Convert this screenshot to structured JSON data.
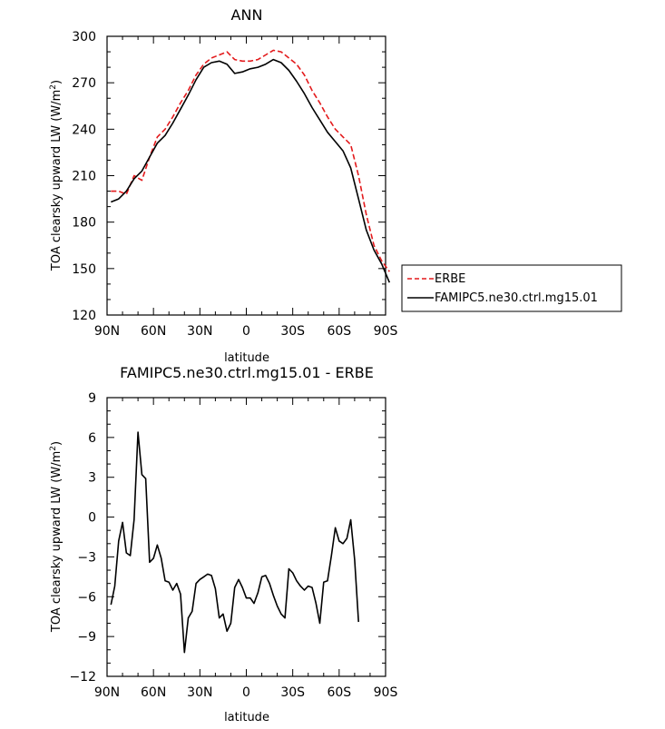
{
  "chart_data": [
    {
      "type": "line",
      "title": "ANN",
      "xlabel": "latitude",
      "ylabel": "TOA clearsky upward LW (W/m2)",
      "ylabel_main": "TOA clearsky upward LW (W/m",
      "ylabel_sup": "2",
      "ylabel_end": ")",
      "xlim": [
        90,
        -90
      ],
      "ylim": [
        120,
        300
      ],
      "xticks": [
        90,
        60,
        30,
        0,
        -30,
        -60,
        -90
      ],
      "xtick_labels": [
        "90N",
        "60N",
        "30N",
        "0",
        "30S",
        "60S",
        "90S"
      ],
      "yticks": [
        120,
        150,
        180,
        210,
        240,
        270,
        300
      ],
      "ytick_labels": [
        "120",
        "150",
        "180",
        "210",
        "240",
        "270",
        "300"
      ],
      "grid": false,
      "legend": "right-outside",
      "series": [
        {
          "name": "ERBE",
          "color": "#e31a1c",
          "dash": "dashed",
          "points": [
            [
              87.5,
              200
            ],
            [
              82.5,
              200
            ],
            [
              77.5,
              198
            ],
            [
              72.5,
              210
            ],
            [
              67.5,
              207
            ],
            [
              62.5,
              222
            ],
            [
              57.5,
              235
            ],
            [
              52.5,
              240
            ],
            [
              47.5,
              248
            ],
            [
              42.5,
              257
            ],
            [
              37.5,
              265
            ],
            [
              32.5,
              275
            ],
            [
              27.5,
              282
            ],
            [
              22.5,
              286
            ],
            [
              17.5,
              288
            ],
            [
              12.5,
              290
            ],
            [
              7.5,
              285
            ],
            [
              2.5,
              284
            ],
            [
              -2.5,
              284
            ],
            [
              -7.5,
              285
            ],
            [
              -12.5,
              288
            ],
            [
              -17.5,
              291
            ],
            [
              -22.5,
              290
            ],
            [
              -27.5,
              286
            ],
            [
              -32.5,
              282
            ],
            [
              -37.5,
              275
            ],
            [
              -42.5,
              265
            ],
            [
              -47.5,
              257
            ],
            [
              -52.5,
              248
            ],
            [
              -57.5,
              240
            ],
            [
              -62.5,
              235
            ],
            [
              -67.5,
              230
            ],
            [
              -72.5,
              210
            ],
            [
              -77.5,
              185
            ],
            [
              -82.5,
              165
            ],
            [
              -87.5,
              155
            ],
            [
              -92.5,
              148
            ]
          ]
        },
        {
          "name": "FAMIPC5.ne30.ctrl.mg15.01",
          "color": "#000000",
          "dash": "solid",
          "points": [
            [
              87.5,
              193
            ],
            [
              82.5,
              195
            ],
            [
              77.5,
              200
            ],
            [
              72.5,
              208
            ],
            [
              67.5,
              213
            ],
            [
              62.5,
              222
            ],
            [
              57.5,
              231
            ],
            [
              52.5,
              236
            ],
            [
              47.5,
              244
            ],
            [
              42.5,
              253
            ],
            [
              37.5,
              262
            ],
            [
              32.5,
              272
            ],
            [
              27.5,
              280
            ],
            [
              22.5,
              283
            ],
            [
              17.5,
              284
            ],
            [
              12.5,
              282
            ],
            [
              7.5,
              276
            ],
            [
              2.5,
              277
            ],
            [
              -2.5,
              279
            ],
            [
              -7.5,
              280
            ],
            [
              -12.5,
              282
            ],
            [
              -17.5,
              285
            ],
            [
              -22.5,
              283
            ],
            [
              -27.5,
              278
            ],
            [
              -32.5,
              271
            ],
            [
              -37.5,
              263
            ],
            [
              -42.5,
              254
            ],
            [
              -47.5,
              246
            ],
            [
              -52.5,
              238
            ],
            [
              -57.5,
              232
            ],
            [
              -62.5,
              226
            ],
            [
              -67.5,
              215
            ],
            [
              -72.5,
              195
            ],
            [
              -77.5,
              175
            ],
            [
              -82.5,
              162
            ],
            [
              -87.5,
              153
            ],
            [
              -92.5,
              141
            ]
          ]
        }
      ]
    },
    {
      "type": "line",
      "title": "FAMIPC5.ne30.ctrl.mg15.01 - ERBE",
      "xlabel": "latitude",
      "ylabel": "TOA clearsky upward LW (W/m2)",
      "ylabel_main": "TOA clearsky upward LW (W/m",
      "ylabel_sup": "2",
      "ylabel_end": ")",
      "xlim": [
        90,
        -90
      ],
      "ylim": [
        -12,
        9
      ],
      "xticks": [
        90,
        60,
        30,
        0,
        -30,
        -60,
        -90
      ],
      "xtick_labels": [
        "90N",
        "60N",
        "30N",
        "0",
        "30S",
        "60S",
        "90S"
      ],
      "yticks": [
        -12,
        -9,
        -6,
        -3,
        0,
        3,
        6,
        9
      ],
      "ytick_labels": [
        "−12",
        "−9",
        "−6",
        "−3",
        "0",
        "3",
        "6",
        "9"
      ],
      "grid": false,
      "series": [
        {
          "name": "FAMIPC5.ne30.ctrl.mg15.01 - ERBE",
          "color": "#000000",
          "dash": "solid",
          "points": [
            [
              87.5,
              -6.6
            ],
            [
              85,
              -5.2
            ],
            [
              82.5,
              -1.8
            ],
            [
              80,
              -0.4
            ],
            [
              77.5,
              -2.7
            ],
            [
              75,
              -2.9
            ],
            [
              72.5,
              -0.2
            ],
            [
              70,
              6.4
            ],
            [
              67.5,
              3.2
            ],
            [
              65,
              2.9
            ],
            [
              62.5,
              -3.4
            ],
            [
              60,
              -3.1
            ],
            [
              57.5,
              -2.1
            ],
            [
              55,
              -3.1
            ],
            [
              52.5,
              -4.8
            ],
            [
              50,
              -4.9
            ],
            [
              47.5,
              -5.5
            ],
            [
              45,
              -5.0
            ],
            [
              42.5,
              -5.8
            ],
            [
              40,
              -10.2
            ],
            [
              37.5,
              -7.6
            ],
            [
              35,
              -7.1
            ],
            [
              32.5,
              -5.0
            ],
            [
              30,
              -4.7
            ],
            [
              27.5,
              -4.5
            ],
            [
              25,
              -4.3
            ],
            [
              22.5,
              -4.4
            ],
            [
              20,
              -5.4
            ],
            [
              17.5,
              -7.6
            ],
            [
              15,
              -7.3
            ],
            [
              12.5,
              -8.6
            ],
            [
              10,
              -8.0
            ],
            [
              7.5,
              -5.3
            ],
            [
              5,
              -4.7
            ],
            [
              2.5,
              -5.3
            ],
            [
              0,
              -6.1
            ],
            [
              -2.5,
              -6.1
            ],
            [
              -5,
              -6.5
            ],
            [
              -7.5,
              -5.7
            ],
            [
              -10,
              -4.5
            ],
            [
              -12.5,
              -4.4
            ],
            [
              -15,
              -5.0
            ],
            [
              -17.5,
              -5.9
            ],
            [
              -20,
              -6.7
            ],
            [
              -22.5,
              -7.3
            ],
            [
              -25,
              -7.6
            ],
            [
              -27.5,
              -3.9
            ],
            [
              -30,
              -4.2
            ],
            [
              -32.5,
              -4.8
            ],
            [
              -35,
              -5.2
            ],
            [
              -37.5,
              -5.5
            ],
            [
              -40,
              -5.2
            ],
            [
              -42.5,
              -5.3
            ],
            [
              -45,
              -6.5
            ],
            [
              -47.5,
              -8.0
            ],
            [
              -50,
              -4.9
            ],
            [
              -52.5,
              -4.8
            ],
            [
              -55,
              -2.9
            ],
            [
              -57.5,
              -0.8
            ],
            [
              -60,
              -1.8
            ],
            [
              -62.5,
              -2.0
            ],
            [
              -65,
              -1.6
            ],
            [
              -67.5,
              -0.2
            ],
            [
              -70,
              -3.2
            ],
            [
              -72.5,
              -7.9
            ]
          ]
        }
      ]
    }
  ]
}
